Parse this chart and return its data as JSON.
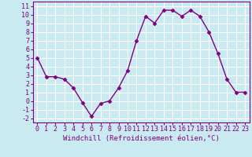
{
  "x": [
    0,
    1,
    2,
    3,
    4,
    5,
    6,
    7,
    8,
    9,
    10,
    11,
    12,
    13,
    14,
    15,
    16,
    17,
    18,
    19,
    20,
    21,
    22,
    23
  ],
  "y": [
    5.0,
    2.8,
    2.8,
    2.5,
    1.5,
    -0.2,
    -1.8,
    -0.3,
    0.0,
    1.5,
    3.5,
    7.0,
    9.8,
    9.0,
    10.5,
    10.5,
    9.8,
    10.5,
    9.8,
    8.0,
    5.5,
    2.5,
    1.0,
    1.0
  ],
  "line_color": "#800080",
  "marker": "D",
  "marker_size": 2.5,
  "xlabel": "Windchill (Refroidissement éolien,°C)",
  "xlim": [
    -0.5,
    23.5
  ],
  "ylim": [
    -2.5,
    11.5
  ],
  "xticks": [
    0,
    1,
    2,
    3,
    4,
    5,
    6,
    7,
    8,
    9,
    10,
    11,
    12,
    13,
    14,
    15,
    16,
    17,
    18,
    19,
    20,
    21,
    22,
    23
  ],
  "yticks": [
    -2,
    -1,
    0,
    1,
    2,
    3,
    4,
    5,
    6,
    7,
    8,
    9,
    10,
    11
  ],
  "bg_color": "#c8eaf0",
  "grid_color": "#ffffff",
  "xlabel_fontsize": 6.5,
  "tick_fontsize": 6.0,
  "linewidth": 1.0
}
